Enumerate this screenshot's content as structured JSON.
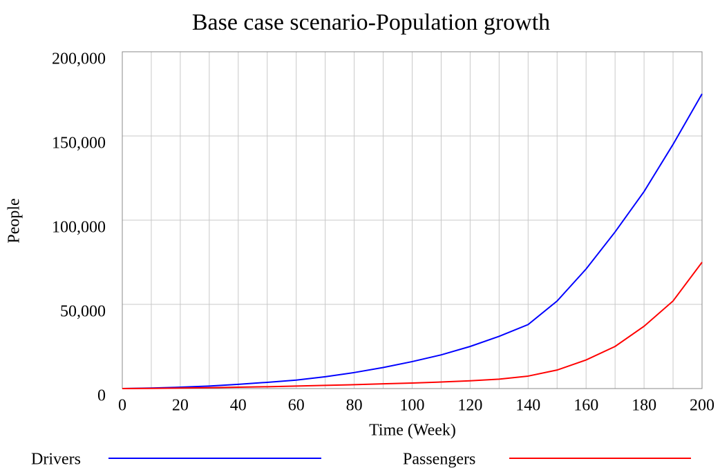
{
  "chart_data": {
    "type": "line",
    "title": "Base case scenario-Population growth",
    "xlabel": "Time (Week)",
    "ylabel": "People",
    "x": [
      0,
      10,
      20,
      30,
      40,
      50,
      60,
      70,
      80,
      90,
      100,
      110,
      120,
      130,
      140,
      150,
      160,
      170,
      180,
      190,
      200
    ],
    "series": [
      {
        "name": "Drivers",
        "color": "#0000ff",
        "values": [
          0,
          300,
          800,
          1500,
          2500,
          3700,
          5000,
          7000,
          9500,
          12500,
          16000,
          20000,
          25000,
          31000,
          38000,
          52000,
          71000,
          93000,
          117000,
          145000,
          175000
        ]
      },
      {
        "name": "Passengers",
        "color": "#ff0000",
        "values": [
          0,
          100,
          300,
          500,
          800,
          1100,
          1500,
          1900,
          2300,
          2800,
          3300,
          3900,
          4600,
          5600,
          7400,
          11000,
          17000,
          25000,
          37000,
          52000,
          75000
        ]
      }
    ],
    "xlim": [
      0,
      200
    ],
    "xticks": [
      0,
      20,
      40,
      60,
      80,
      100,
      120,
      140,
      160,
      180,
      200
    ],
    "ylim": [
      0,
      200000
    ],
    "yticks": [
      0,
      {
        "value": 50000,
        "label": "50,000"
      },
      {
        "value": 100000,
        "label": "100,000"
      },
      {
        "value": 150000,
        "label": "150,000"
      },
      {
        "value": 200000,
        "label": "200,000"
      }
    ],
    "grid": true,
    "legend": "bottom"
  }
}
